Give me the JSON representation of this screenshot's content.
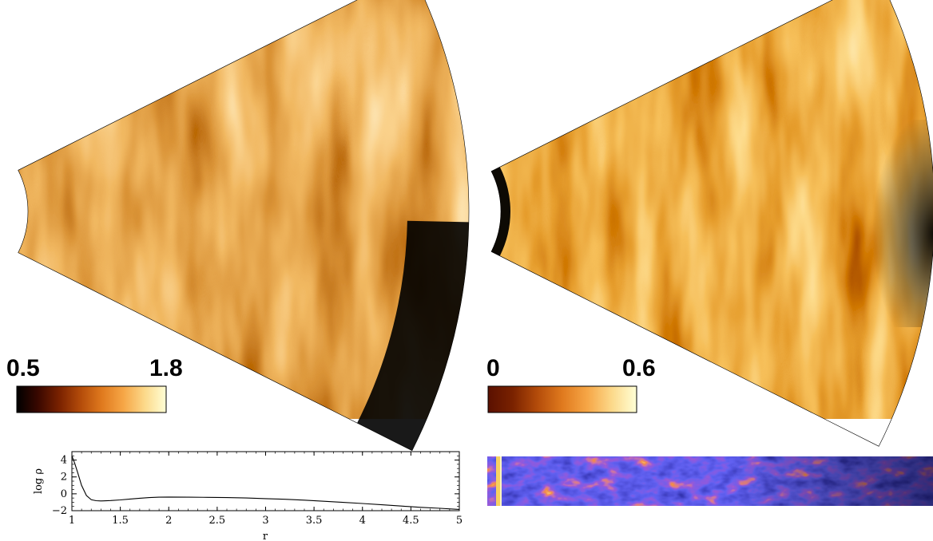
{
  "colormaps": {
    "heat": [
      "#000000",
      "#3a0800",
      "#7a2200",
      "#b44c0a",
      "#e07a1e",
      "#f6a646",
      "#fcd98a",
      "#ffffd6"
    ],
    "stream": [
      "#000000",
      "#07063a",
      "#0a0a78",
      "#1a1ab4",
      "#2e2ee0",
      "#9020b0",
      "#e03a10",
      "#ffd040",
      "#ffffff"
    ]
  },
  "panels": {
    "left_colorbar": {
      "min_label": "0.5",
      "max_label": "1.8"
    },
    "right_colorbar": {
      "min_label": "0",
      "max_label": "0.6"
    }
  },
  "chart_data": {
    "type": "line",
    "title": "",
    "xlabel": "r",
    "ylabel": "log ρ",
    "xlim": [
      1,
      5
    ],
    "ylim": [
      -2,
      5
    ],
    "xticks": [
      "1",
      "1.5",
      "2",
      "2.5",
      "3",
      "3.5",
      "4",
      "4.5",
      "5"
    ],
    "yticks": [
      "-2",
      "0",
      "2",
      "4"
    ],
    "grid": false,
    "series": [
      {
        "x": [
          1.0,
          1.03,
          1.06,
          1.1,
          1.15,
          1.2,
          1.25,
          1.3,
          1.4,
          1.5,
          1.6,
          1.7,
          1.8,
          1.9,
          2.0,
          2.2,
          2.4,
          2.6,
          2.8,
          3.0,
          3.2,
          3.4,
          3.6,
          3.8,
          4.0,
          4.2,
          4.4,
          4.6,
          4.8,
          5.0
        ],
        "y": [
          4.5,
          3.6,
          2.5,
          1.0,
          -0.2,
          -0.7,
          -0.82,
          -0.85,
          -0.8,
          -0.72,
          -0.62,
          -0.52,
          -0.45,
          -0.4,
          -0.38,
          -0.4,
          -0.42,
          -0.45,
          -0.5,
          -0.57,
          -0.65,
          -0.75,
          -0.88,
          -1.02,
          -1.15,
          -1.3,
          -1.45,
          -1.6,
          -1.72,
          -1.85
        ]
      }
    ]
  }
}
